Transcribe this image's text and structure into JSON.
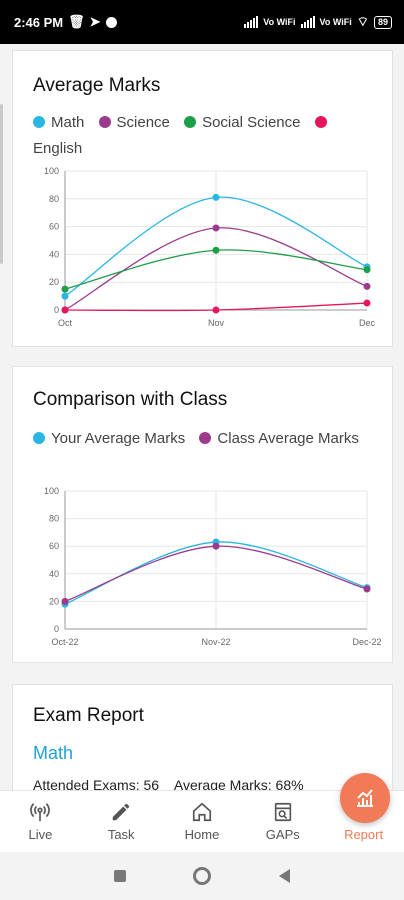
{
  "status_bar": {
    "time": "2:46 PM",
    "battery": "89",
    "network_labels": [
      "Vo WiFi",
      "Vo WiFi"
    ]
  },
  "average_marks": {
    "title": "Average Marks",
    "legend": [
      {
        "name": "Math",
        "color": "#29b6e3"
      },
      {
        "name": "Science",
        "color": "#9c3a8e"
      },
      {
        "name": "Social Science",
        "color": "#1f9e4a"
      },
      {
        "name": "English",
        "color": "#e5175c"
      }
    ]
  },
  "comparison": {
    "title": "Comparison with Class",
    "legend": [
      {
        "name": "Your Average Marks",
        "color": "#29b6e3"
      },
      {
        "name": "Class Average Marks",
        "color": "#9c3a8e"
      }
    ]
  },
  "exam_report": {
    "title": "Exam Report",
    "subject": "Math",
    "attended": "Attended Exams: 56",
    "average": "Average Marks: 68%"
  },
  "chart_data": [
    {
      "type": "line",
      "title": "Average Marks",
      "categories": [
        "Oct",
        "Nov",
        "Dec"
      ],
      "ylim": [
        0,
        100
      ],
      "yticks": [
        0,
        20,
        40,
        60,
        80,
        100
      ],
      "grid": true,
      "legend_position": "top",
      "series": [
        {
          "name": "Math",
          "color": "#29b6e3",
          "values": [
            10,
            81,
            31
          ]
        },
        {
          "name": "Science",
          "color": "#9c3a8e",
          "values": [
            0,
            59,
            17
          ]
        },
        {
          "name": "Social Science",
          "color": "#1f9e4a",
          "values": [
            15,
            43,
            29
          ]
        },
        {
          "name": "English",
          "color": "#e5175c",
          "values": [
            0,
            0,
            5
          ]
        }
      ]
    },
    {
      "type": "line",
      "title": "Comparison with Class",
      "categories": [
        "Oct-22",
        "Nov-22",
        "Dec-22"
      ],
      "ylim": [
        0,
        100
      ],
      "yticks": [
        0,
        20,
        40,
        60,
        80,
        100
      ],
      "grid": true,
      "legend_position": "top",
      "series": [
        {
          "name": "Your Average Marks",
          "color": "#29b6e3",
          "values": [
            18,
            63,
            30
          ]
        },
        {
          "name": "Class Average Marks",
          "color": "#9c3a8e",
          "values": [
            20,
            60,
            29
          ]
        }
      ]
    }
  ],
  "bottom_nav": [
    {
      "label": "Live",
      "icon": "live-broadcast-icon",
      "active": false
    },
    {
      "label": "Task",
      "icon": "pencil-icon",
      "active": false
    },
    {
      "label": "Home",
      "icon": "home-icon",
      "active": false
    },
    {
      "label": "GAPs",
      "icon": "gaps-document-search-icon",
      "active": false
    },
    {
      "label": "Report",
      "icon": "report-chart-icon",
      "active": true
    }
  ],
  "fab": {
    "icon": "report-chart-icon",
    "color": "#f07b56"
  }
}
